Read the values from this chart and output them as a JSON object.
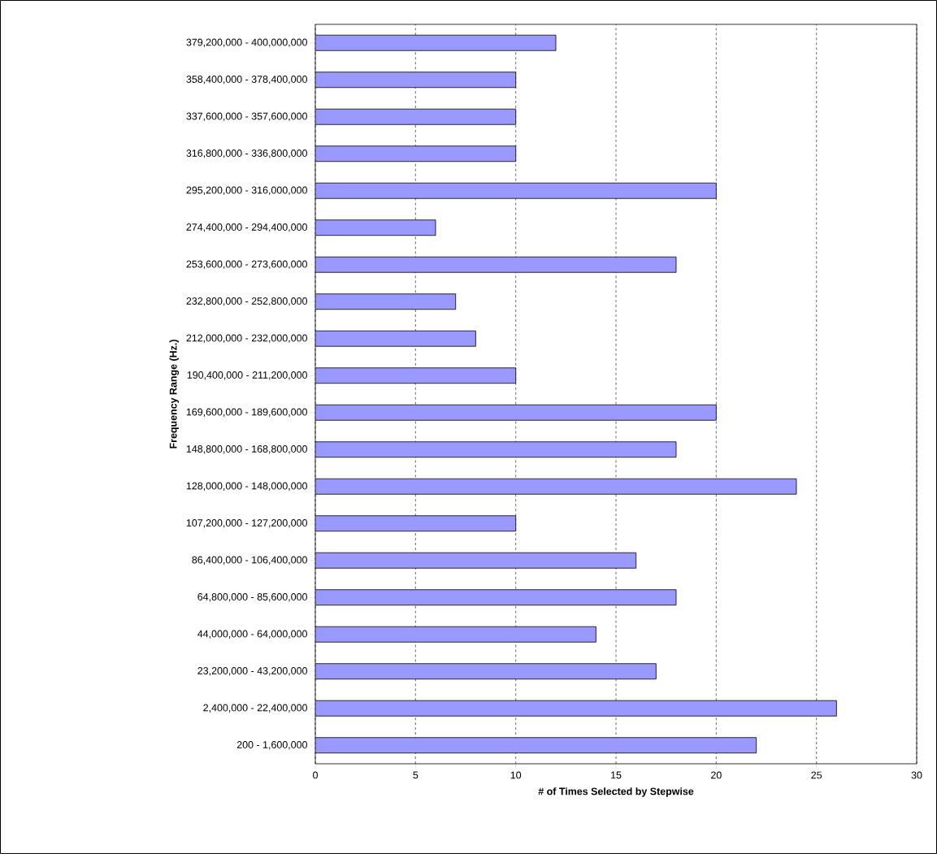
{
  "chart_data": {
    "type": "bar",
    "orientation": "horizontal",
    "xlabel": "# of Times Selected by Stepwise",
    "ylabel": "Frequency Range (Hz.)",
    "categories": [
      "379,200,000 - 400,000,000",
      "358,400,000 - 378,400,000",
      "337,600,000 - 357,600,000",
      "316,800,000 - 336,800,000",
      "295,200,000 - 316,000,000",
      "274,400,000 - 294,400,000",
      "253,600,000 - 273,600,000",
      "232,800,000 - 252,800,000",
      "212,000,000 - 232,000,000",
      "190,400,000 - 211,200,000",
      "169,600,000 - 189,600,000",
      "148,800,000 - 168,800,000",
      "128,000,000 - 148,000,000",
      "107,200,000 - 127,200,000",
      "86,400,000 - 106,400,000",
      "64,800,000 - 85,600,000",
      "44,000,000 - 64,000,000",
      "23,200,000 - 43,200,000",
      "2,400,000 - 22,400,000",
      "200 - 1,600,000"
    ],
    "values": [
      12,
      10,
      10,
      10,
      20,
      6,
      18,
      7,
      8,
      10,
      20,
      18,
      24,
      10,
      16,
      18,
      14,
      17,
      26,
      22
    ],
    "color": "#9999ff",
    "xlim": [
      0,
      30
    ],
    "xticks": [
      0,
      5,
      10,
      15,
      20,
      25,
      30
    ],
    "grid": "x"
  }
}
